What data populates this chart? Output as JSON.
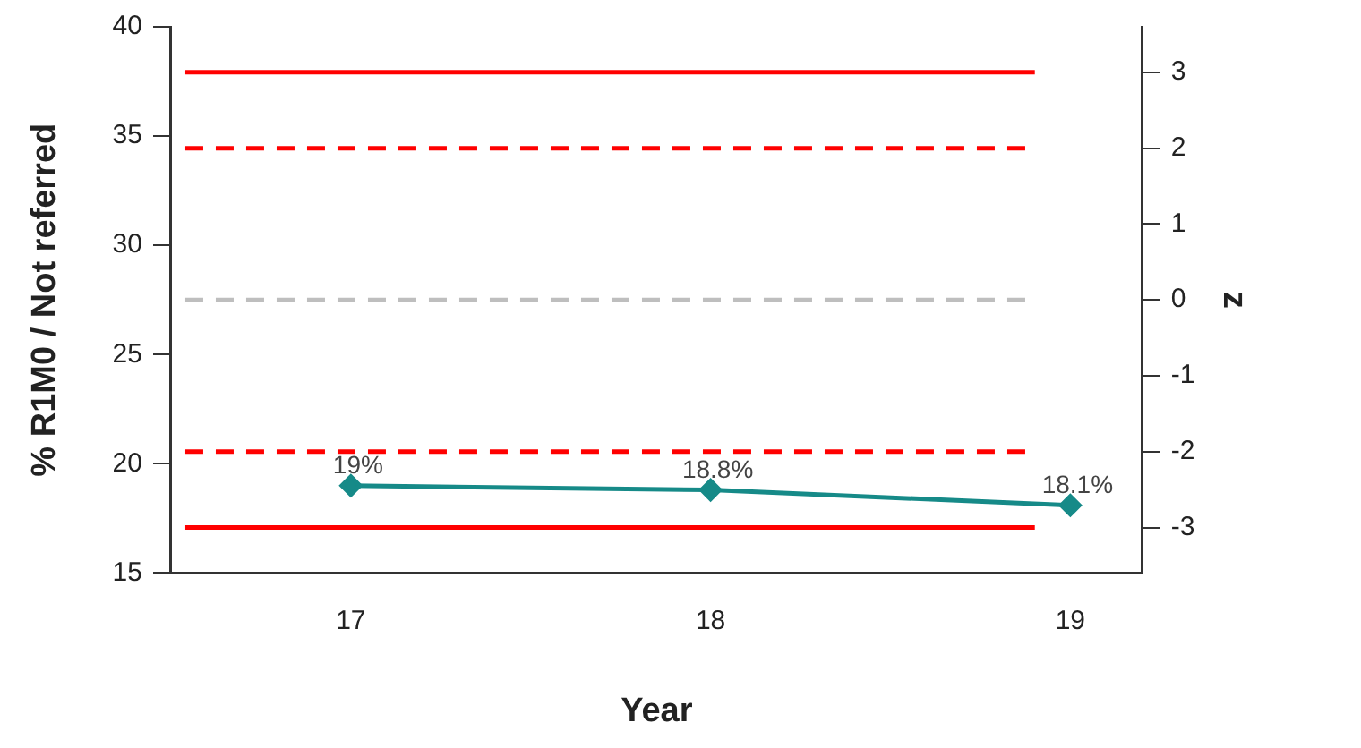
{
  "chart_data": {
    "type": "line",
    "xlabel": "Year",
    "ylabel": "% R1M0 / Not referred",
    "y2label": "z",
    "x": [
      17,
      18,
      19
    ],
    "series": [
      {
        "color": "#168a88",
        "values": [
          19,
          18.8,
          18.1
        ],
        "value_labels": [
          "19%",
          "18.8%",
          "18.1%"
        ]
      }
    ],
    "xlim": [
      16.5,
      19.2
    ],
    "xticks": [
      17,
      18,
      19
    ],
    "ylim": [
      15,
      40
    ],
    "yticks": [
      15,
      20,
      25,
      30,
      35,
      40
    ],
    "y2lim": [
      -3.6,
      3.6
    ],
    "y2ticks": [
      -3,
      -2,
      -1,
      0,
      1,
      2,
      3
    ],
    "ref_lines": [
      {
        "axis": "y2",
        "value": 3,
        "color": "#ff0000",
        "line_style": "solid"
      },
      {
        "axis": "y2",
        "value": 2,
        "color": "#ff0000",
        "line_style": "dashed"
      },
      {
        "axis": "y2",
        "value": 0,
        "color": "#bebebe",
        "line_style": "dashed"
      },
      {
        "axis": "y2",
        "value": -2,
        "color": "#ff0000",
        "line_style": "dashed"
      },
      {
        "axis": "y2",
        "value": -3,
        "color": "#ff0000",
        "line_style": "solid"
      }
    ],
    "marker": "diamond",
    "line_style": "solid",
    "grid": false,
    "legend": false
  }
}
